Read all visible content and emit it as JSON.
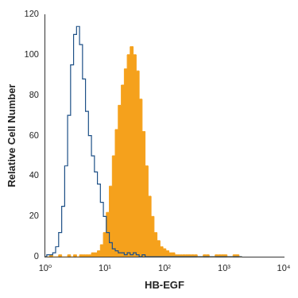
{
  "chart_data": {
    "type": "line",
    "x_label": "HB-EGF",
    "y_label": "Relative Cell Number",
    "log": "x",
    "grid": false,
    "xlim": [
      1,
      10000
    ],
    "xticks": [
      {
        "value": 1,
        "label": "10⁰"
      },
      {
        "value": 10,
        "label": "10¹"
      },
      {
        "value": 100,
        "label": "10²"
      },
      {
        "value": 1000,
        "label": "10³"
      },
      {
        "value": 10000,
        "label": "10⁴"
      }
    ],
    "ylim": [
      0,
      120
    ],
    "yticks": [
      0,
      20,
      40,
      60,
      80,
      100,
      120
    ],
    "x": [
      1,
      1.12,
      1.26,
      1.41,
      1.58,
      1.78,
      2,
      2.24,
      2.51,
      2.82,
      3.16,
      3.55,
      3.98,
      4.47,
      5.01,
      5.62,
      6.31,
      7.08,
      7.94,
      8.91,
      10,
      11.2,
      12.6,
      14.1,
      15.8,
      17.8,
      20,
      22.4,
      25.1,
      28.2,
      31.6,
      35.5,
      39.8,
      44.7,
      50.1,
      56.2,
      63.1,
      70.8,
      79.4,
      89.1,
      100,
      112,
      126,
      141,
      158,
      178,
      200,
      251,
      316,
      398,
      501,
      631,
      794,
      1000,
      1259,
      1585,
      2000
    ],
    "series": [
      {
        "type": "line",
        "color": "#1c4f86",
        "values": [
          0,
          1,
          1,
          2,
          5,
          12,
          25,
          45,
          70,
          95,
          110,
          114,
          105,
          88,
          72,
          60,
          50,
          42,
          36,
          27,
          20,
          12,
          7,
          4,
          3,
          2,
          2,
          1,
          2,
          1,
          2,
          1,
          0,
          1,
          0,
          0,
          0,
          0,
          0,
          0,
          0,
          0,
          0,
          0,
          0,
          0,
          0,
          0,
          0,
          0,
          0,
          0,
          0,
          0,
          0,
          0,
          0
        ]
      },
      {
        "type": "area",
        "color": "#f5a11c",
        "values": [
          0,
          0,
          1,
          0,
          0,
          1,
          0,
          0,
          1,
          0,
          1,
          0,
          1,
          1,
          1,
          1,
          2,
          2,
          3,
          6,
          12,
          22,
          35,
          50,
          63,
          75,
          85,
          93,
          100,
          104,
          100,
          92,
          78,
          62,
          45,
          30,
          20,
          12,
          8,
          5,
          4,
          3,
          2,
          2,
          1,
          1,
          1,
          1,
          1,
          0,
          1,
          0,
          1,
          1,
          0,
          1,
          0
        ]
      }
    ]
  }
}
